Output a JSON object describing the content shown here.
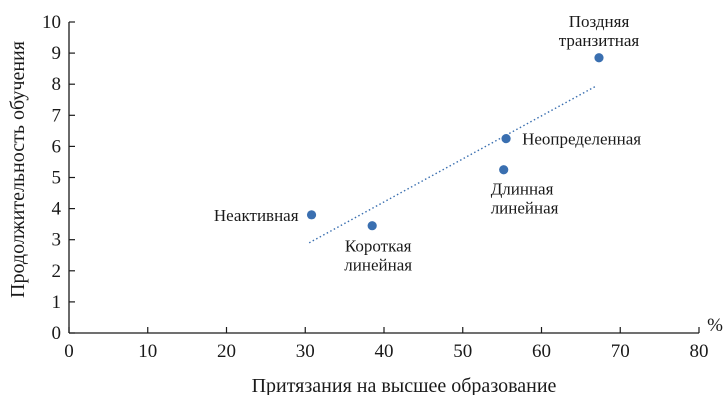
{
  "chart_data": {
    "type": "scatter",
    "xlabel": "Притязания на высшее образование",
    "ylabel": "Продолжительность обучения",
    "x_unit": "%",
    "xlim": [
      0,
      80
    ],
    "ylim": [
      0,
      10
    ],
    "xticks": [
      0,
      10,
      20,
      30,
      40,
      50,
      60,
      70,
      80
    ],
    "yticks": [
      0,
      1,
      2,
      3,
      4,
      5,
      6,
      7,
      8,
      9,
      10
    ],
    "grid": false,
    "points": [
      {
        "label": [
          "Неактивная"
        ],
        "x": 30.8,
        "y": 3.8
      },
      {
        "label": [
          "Короткая",
          "линейная"
        ],
        "x": 38.5,
        "y": 3.45
      },
      {
        "label": [
          "Длинная",
          "линейная"
        ],
        "x": 55.2,
        "y": 5.25
      },
      {
        "label": [
          "Неопределенная"
        ],
        "x": 55.5,
        "y": 6.25
      },
      {
        "label": [
          "Поздняя",
          "транзитная"
        ],
        "x": 67.3,
        "y": 8.85
      }
    ],
    "trendline": {
      "style": "dotted",
      "x": [
        30.5,
        67.0
      ],
      "y": [
        2.9,
        7.95
      ]
    },
    "colors": {
      "points": "#3a6fb0",
      "trendline": "#3a6fb0",
      "axes": "#1a1a1a"
    }
  }
}
